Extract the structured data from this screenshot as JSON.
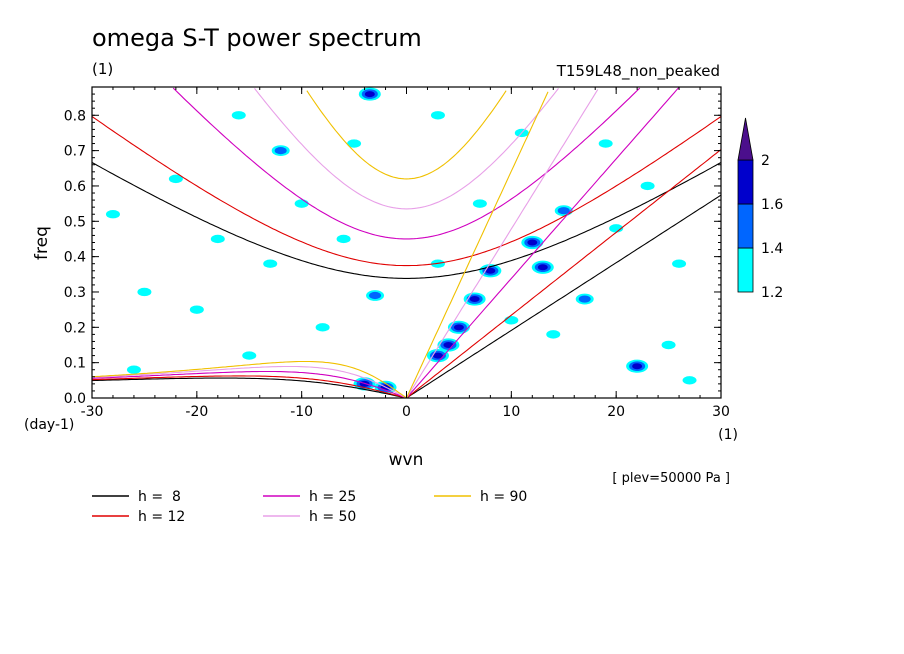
{
  "chart_data": {
    "type": "heatmap",
    "title": "omega S-T power spectrum",
    "subtitle_left": "(1)",
    "subtitle_right": "T159L48_non_peaked",
    "xlabel": "wvn",
    "ylabel": "freq",
    "x_unit": "(1)",
    "y_unit": "(day-1)",
    "xlim": [
      -30,
      30
    ],
    "ylim": [
      0,
      0.88
    ],
    "x_ticks": [
      -30,
      -20,
      -10,
      0,
      10,
      20,
      30
    ],
    "x_tick_labels": [
      "-30",
      "-20",
      "-10",
      "0",
      "10",
      "20",
      "30"
    ],
    "y_ticks": [
      0,
      0.1,
      0.2,
      0.3,
      0.4,
      0.5,
      0.6,
      0.7,
      0.8
    ],
    "y_tick_labels": [
      "0.0",
      "0.1",
      "0.2",
      "0.3",
      "0.4",
      "0.5",
      "0.6",
      "0.7",
      "0.8"
    ],
    "annotation": "[ plev=50000 Pa ]",
    "colorbar": {
      "levels": [
        1.2,
        1.4,
        1.6,
        2
      ],
      "labels": [
        "1.2",
        "1.4",
        "1.6",
        "2"
      ],
      "colors": [
        "#00ffff",
        "#0066ff",
        "#0000cc",
        "#4b0f8c"
      ]
    },
    "dispersion_curves": [
      {
        "label": "h =  8",
        "h": 8,
        "color": "#000000"
      },
      {
        "label": "h = 12",
        "h": 12,
        "color": "#e00000"
      },
      {
        "label": "h = 25",
        "h": 25,
        "color": "#d000c0"
      },
      {
        "label": "h = 50",
        "h": 50,
        "color": "#e8a0e8"
      },
      {
        "label": "h = 90",
        "h": 90,
        "color": "#f0c000"
      }
    ],
    "power_blobs": [
      {
        "x": -3.5,
        "y": 0.86,
        "level": 3
      },
      {
        "x": -2,
        "y": 0.03,
        "level": 3
      },
      {
        "x": -4,
        "y": 0.04,
        "level": 3
      },
      {
        "x": 3,
        "y": 0.12,
        "level": 3
      },
      {
        "x": 5,
        "y": 0.2,
        "level": 3
      },
      {
        "x": 6.5,
        "y": 0.28,
        "level": 3
      },
      {
        "x": 8,
        "y": 0.36,
        "level": 3
      },
      {
        "x": 4,
        "y": 0.15,
        "level": 3
      },
      {
        "x": 12,
        "y": 0.44,
        "level": 3
      },
      {
        "x": 13,
        "y": 0.37,
        "level": 3
      },
      {
        "x": 15,
        "y": 0.53,
        "level": 2
      },
      {
        "x": 17,
        "y": 0.28,
        "level": 2
      },
      {
        "x": 22,
        "y": 0.09,
        "level": 3
      },
      {
        "x": -3,
        "y": 0.29,
        "level": 2
      },
      {
        "x": -12,
        "y": 0.7,
        "level": 2
      },
      {
        "x": 3,
        "y": 0.38,
        "level": 1
      },
      {
        "x": -18,
        "y": 0.45,
        "level": 1
      },
      {
        "x": -25,
        "y": 0.3,
        "level": 1
      },
      {
        "x": -10,
        "y": 0.55,
        "level": 1
      },
      {
        "x": -22,
        "y": 0.62,
        "level": 1
      },
      {
        "x": -26,
        "y": 0.08,
        "level": 1
      },
      {
        "x": -15,
        "y": 0.12,
        "level": 1
      },
      {
        "x": -8,
        "y": 0.2,
        "level": 1
      },
      {
        "x": 25,
        "y": 0.15,
        "level": 1
      },
      {
        "x": 27,
        "y": 0.05,
        "level": 1
      },
      {
        "x": 20,
        "y": 0.48,
        "level": 1
      },
      {
        "x": 23,
        "y": 0.6,
        "level": 1
      },
      {
        "x": 19,
        "y": 0.72,
        "level": 1
      },
      {
        "x": 10,
        "y": 0.22,
        "level": 1
      },
      {
        "x": 14,
        "y": 0.18,
        "level": 1
      },
      {
        "x": -5,
        "y": 0.72,
        "level": 1
      },
      {
        "x": -20,
        "y": 0.25,
        "level": 1
      },
      {
        "x": -13,
        "y": 0.38,
        "level": 1
      },
      {
        "x": 3,
        "y": 0.8,
        "level": 1
      },
      {
        "x": 11,
        "y": 0.75,
        "level": 1
      },
      {
        "x": -28,
        "y": 0.52,
        "level": 1
      },
      {
        "x": 26,
        "y": 0.38,
        "level": 1
      },
      {
        "x": -6,
        "y": 0.45,
        "level": 1
      },
      {
        "x": 7,
        "y": 0.55,
        "level": 1
      },
      {
        "x": -16,
        "y": 0.8,
        "level": 1
      }
    ],
    "legend_placement": "bottom"
  }
}
